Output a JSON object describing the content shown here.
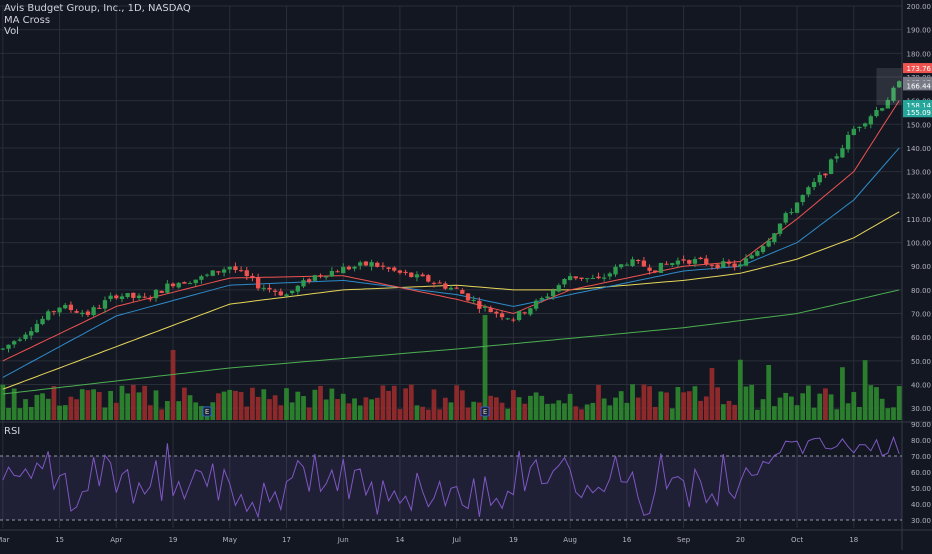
{
  "legend": {
    "title": "Avis Budget Group, Inc., 1D, NASDAQ",
    "indicator1": "MA Cross",
    "indicator2": "Vol"
  },
  "rsi_label": "RSI",
  "colors": {
    "background": "#131722",
    "grid": "#2a2e39",
    "up": "#26a69a",
    "up_candle": "#2e9b4f",
    "down": "#ef5350",
    "ma_short": "#ef5350",
    "ma_mid": "#2e8bc9",
    "ma_long": "#e6d65a",
    "ma_200": "#4caf50",
    "rsi": "#7e57c2",
    "vol_up": "#2f8a2f",
    "vol_down": "#9a2b2b"
  },
  "chart_data": {
    "type": "candlestick",
    "symbol": "Avis Budget Group, Inc.",
    "interval": "1D",
    "exchange": "NASDAQ",
    "price_axis_ticks": [
      "200.00",
      "190.00",
      "180.00",
      "170.00",
      "160.00",
      "150.00",
      "140.00",
      "130.00",
      "120.00",
      "110.00",
      "100.00",
      "90.00",
      "80.00",
      "70.00",
      "60.00",
      "50.00",
      "40.00",
      "30.00"
    ],
    "price_axis_min": 25,
    "price_axis_max": 200,
    "price_labels": [
      {
        "text": "173.76",
        "value": 173.76,
        "color": "#ef5350"
      },
      {
        "text": "167.97",
        "value": 167.97,
        "color": "#787b86"
      },
      {
        "text": "166.44",
        "value": 166.44,
        "color": "#787b86"
      },
      {
        "text": "158.14",
        "value": 158.14,
        "color": "#26a69a"
      },
      {
        "text": "155.09",
        "value": 155.09,
        "color": "#26a69a"
      }
    ],
    "x_axis_labels": [
      "Mar",
      "15",
      "Apr",
      "19",
      "May",
      "17",
      "Jun",
      "14",
      "Jul",
      "19",
      "Aug",
      "16",
      "Sep",
      "20",
      "Oct",
      "18"
    ],
    "x_axis_label_bars": [
      0,
      10,
      20,
      30,
      40,
      50,
      60,
      70,
      80,
      90,
      100,
      110,
      120,
      130,
      140,
      150
    ],
    "earnings_markers": {
      "label": "E",
      "bars": [
        36,
        85
      ]
    },
    "rsi_axis_ticks": [
      "90.00",
      "80.00",
      "70.00",
      "60.00",
      "50.00",
      "40.00",
      "30.00"
    ],
    "rsi_levels": [
      70,
      30
    ],
    "rsi_axis_min": 25,
    "rsi_axis_max": 90,
    "anchors": [
      [
        0,
        55
      ],
      [
        5,
        64
      ],
      [
        10,
        73
      ],
      [
        15,
        70
      ],
      [
        20,
        78
      ],
      [
        25,
        76
      ],
      [
        30,
        83
      ],
      [
        35,
        85
      ],
      [
        40,
        90
      ],
      [
        45,
        82
      ],
      [
        50,
        78
      ],
      [
        55,
        86
      ],
      [
        60,
        89
      ],
      [
        65,
        91
      ],
      [
        70,
        87
      ],
      [
        75,
        84
      ],
      [
        80,
        80
      ],
      [
        85,
        72
      ],
      [
        90,
        68
      ],
      [
        95,
        76
      ],
      [
        100,
        86
      ],
      [
        105,
        84
      ],
      [
        110,
        92
      ],
      [
        115,
        89
      ],
      [
        120,
        93
      ],
      [
        125,
        91
      ],
      [
        130,
        90
      ],
      [
        135,
        102
      ],
      [
        140,
        117
      ],
      [
        145,
        130
      ],
      [
        150,
        148
      ],
      [
        155,
        158
      ],
      [
        158,
        167
      ]
    ],
    "ma_short_anchors": [
      [
        0,
        50
      ],
      [
        20,
        73
      ],
      [
        40,
        85
      ],
      [
        60,
        86
      ],
      [
        80,
        76
      ],
      [
        90,
        70
      ],
      [
        100,
        80
      ],
      [
        120,
        90
      ],
      [
        130,
        92
      ],
      [
        140,
        110
      ],
      [
        150,
        130
      ],
      [
        158,
        160
      ]
    ],
    "ma_mid_anchors": [
      [
        0,
        43
      ],
      [
        20,
        69
      ],
      [
        40,
        82
      ],
      [
        60,
        84
      ],
      [
        80,
        78
      ],
      [
        90,
        73
      ],
      [
        100,
        78
      ],
      [
        120,
        88
      ],
      [
        130,
        90
      ],
      [
        140,
        100
      ],
      [
        150,
        118
      ],
      [
        158,
        140
      ]
    ],
    "ma_long_anchors": [
      [
        0,
        38
      ],
      [
        20,
        56
      ],
      [
        40,
        74
      ],
      [
        60,
        80
      ],
      [
        80,
        82
      ],
      [
        90,
        80
      ],
      [
        100,
        80
      ],
      [
        120,
        84
      ],
      [
        130,
        87
      ],
      [
        140,
        93
      ],
      [
        150,
        102
      ],
      [
        158,
        113
      ]
    ],
    "ma_200_anchors": [
      [
        0,
        36
      ],
      [
        40,
        47
      ],
      [
        80,
        55
      ],
      [
        120,
        64
      ],
      [
        140,
        70
      ],
      [
        158,
        80
      ]
    ],
    "num_bars": 159
  }
}
